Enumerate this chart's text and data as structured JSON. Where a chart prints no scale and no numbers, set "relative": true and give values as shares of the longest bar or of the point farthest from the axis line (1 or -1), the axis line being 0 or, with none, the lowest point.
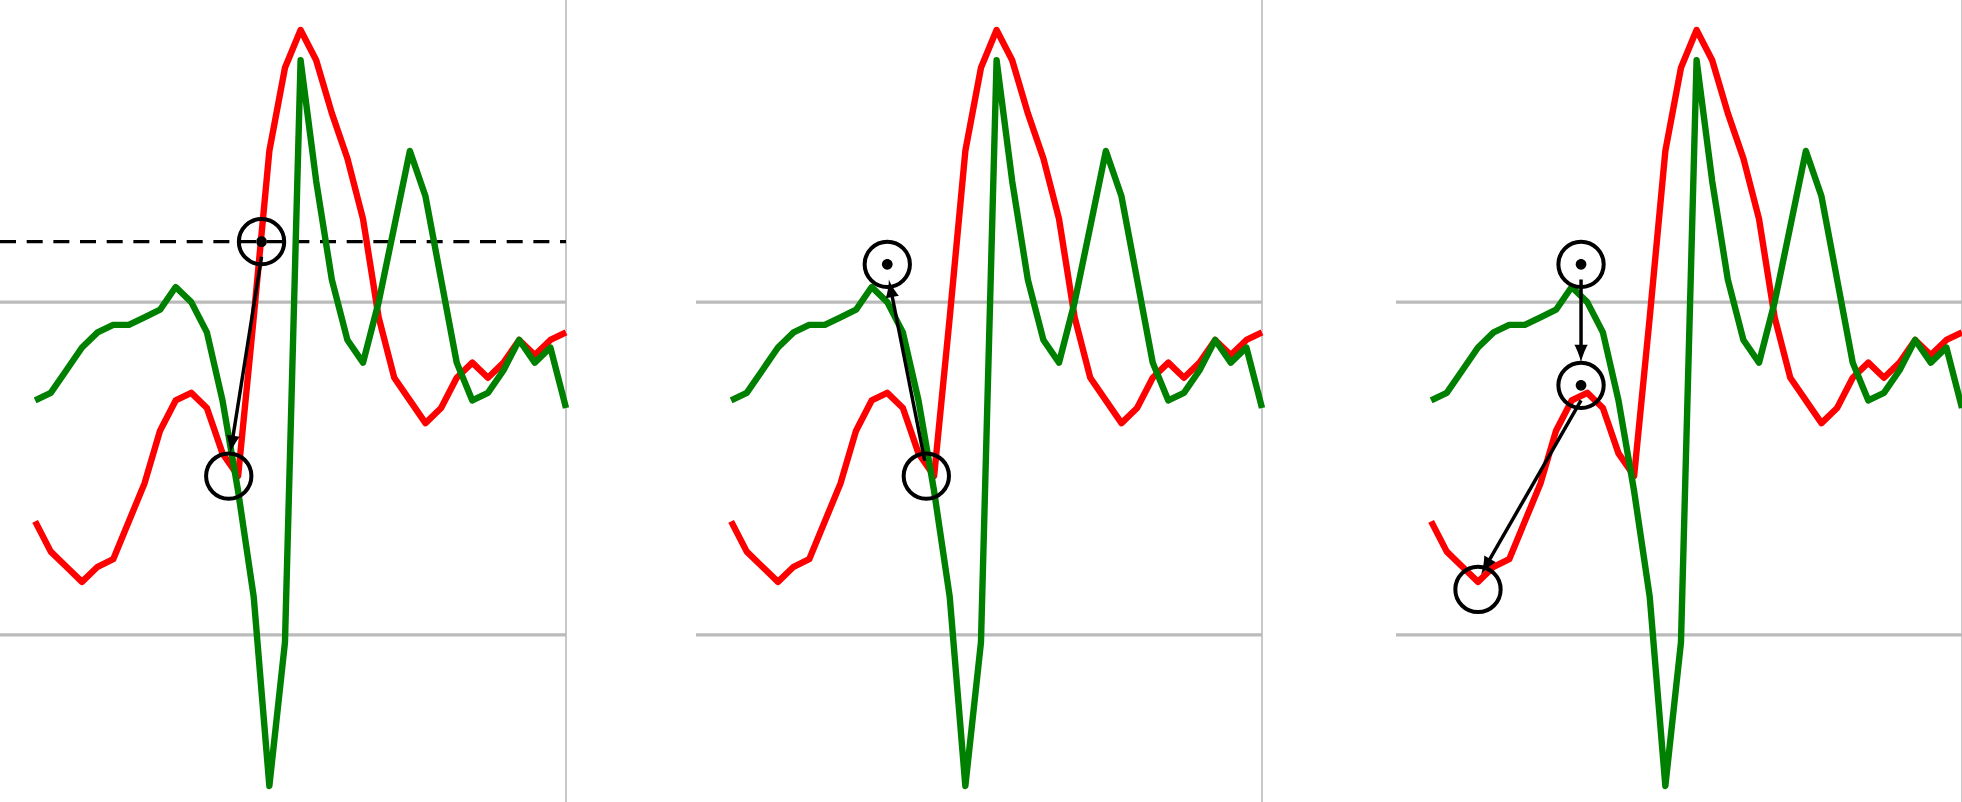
{
  "chart_data": [
    {
      "type": "line",
      "relative": true,
      "categories": [
        null,
        null,
        null,
        null,
        null,
        null,
        null,
        null,
        null,
        null,
        null,
        null,
        null,
        null,
        null,
        null,
        null,
        null,
        null,
        null,
        null,
        null,
        null,
        null,
        null,
        null,
        null,
        null,
        null,
        null,
        null,
        null,
        null,
        null,
        null
      ],
      "series": [
        {
          "color": "#ff0000",
          "values": [
            0.35,
            0.31,
            0.29,
            0.27,
            0.29,
            0.3,
            0.35,
            0.4,
            0.47,
            0.51,
            0.52,
            0.5,
            0.44,
            0.41,
            0.62,
            0.84,
            0.95,
            1,
            0.96,
            0.89,
            0.83,
            0.75,
            0.62,
            0.54,
            0.51,
            0.48,
            0.5,
            0.54,
            0.56,
            0.54,
            0.56,
            0.59,
            0.57,
            0.59,
            0.6
          ]
        },
        {
          "color": "#008000",
          "values": [
            0.51,
            0.52,
            0.55,
            0.58,
            0.6,
            0.61,
            0.61,
            0.62,
            0.63,
            0.66,
            0.64,
            0.6,
            0.51,
            0.39,
            0.25,
            0,
            0.19,
            0.96,
            0.8,
            0.67,
            0.59,
            0.56,
            0.64,
            0.74,
            0.84,
            0.78,
            0.67,
            0.56,
            0.51,
            0.52,
            0.55,
            0.59,
            0.56,
            0.58,
            0.5
          ]
        }
      ],
      "ref_lines": [
        {
          "axis": "y",
          "value": 0.64,
          "color": "#bbbbbb"
        },
        {
          "axis": "y",
          "value": 0.2,
          "color": "#bbbbbb"
        },
        {
          "axis": "y",
          "value": 0.72,
          "color": "#000000",
          "line_style": "dashed"
        }
      ]
    },
    {
      "type": "line",
      "relative": true,
      "categories": [
        null,
        null,
        null,
        null,
        null,
        null,
        null,
        null,
        null,
        null,
        null,
        null,
        null,
        null,
        null,
        null,
        null,
        null,
        null,
        null,
        null,
        null,
        null,
        null,
        null,
        null,
        null,
        null,
        null,
        null,
        null,
        null,
        null,
        null,
        null
      ],
      "series": [
        {
          "color": "#ff0000",
          "values": [
            0.35,
            0.31,
            0.29,
            0.27,
            0.29,
            0.3,
            0.35,
            0.4,
            0.47,
            0.51,
            0.52,
            0.5,
            0.44,
            0.41,
            0.62,
            0.84,
            0.95,
            1,
            0.96,
            0.89,
            0.83,
            0.75,
            0.62,
            0.54,
            0.51,
            0.48,
            0.5,
            0.54,
            0.56,
            0.54,
            0.56,
            0.59,
            0.57,
            0.59,
            0.6
          ]
        },
        {
          "color": "#008000",
          "values": [
            0.51,
            0.52,
            0.55,
            0.58,
            0.6,
            0.61,
            0.61,
            0.62,
            0.63,
            0.66,
            0.64,
            0.6,
            0.51,
            0.39,
            0.25,
            0,
            0.19,
            0.96,
            0.8,
            0.67,
            0.59,
            0.56,
            0.64,
            0.74,
            0.84,
            0.78,
            0.67,
            0.56,
            0.51,
            0.52,
            0.55,
            0.59,
            0.56,
            0.58,
            0.5
          ]
        }
      ],
      "ref_lines": [
        {
          "axis": "y",
          "value": 0.64,
          "color": "#bbbbbb"
        },
        {
          "axis": "y",
          "value": 0.2,
          "color": "#bbbbbb"
        }
      ]
    },
    {
      "type": "line",
      "relative": true,
      "categories": [
        null,
        null,
        null,
        null,
        null,
        null,
        null,
        null,
        null,
        null,
        null,
        null,
        null,
        null,
        null,
        null,
        null,
        null,
        null,
        null,
        null,
        null,
        null,
        null,
        null,
        null,
        null,
        null,
        null,
        null,
        null,
        null,
        null,
        null,
        null
      ],
      "series": [
        {
          "color": "#ff0000",
          "values": [
            0.35,
            0.31,
            0.29,
            0.27,
            0.29,
            0.3,
            0.35,
            0.4,
            0.47,
            0.51,
            0.52,
            0.5,
            0.44,
            0.41,
            0.62,
            0.84,
            0.95,
            1,
            0.96,
            0.89,
            0.83,
            0.75,
            0.62,
            0.54,
            0.51,
            0.48,
            0.5,
            0.54,
            0.56,
            0.54,
            0.56,
            0.59,
            0.57,
            0.59,
            0.6
          ]
        },
        {
          "color": "#008000",
          "values": [
            0.51,
            0.52,
            0.55,
            0.58,
            0.6,
            0.61,
            0.61,
            0.62,
            0.63,
            0.66,
            0.64,
            0.6,
            0.51,
            0.39,
            0.25,
            0,
            0.19,
            0.96,
            0.8,
            0.67,
            0.59,
            0.56,
            0.64,
            0.74,
            0.84,
            0.78,
            0.67,
            0.56,
            0.51,
            0.52,
            0.55,
            0.59,
            0.56,
            0.58,
            0.5
          ]
        }
      ],
      "ref_lines": [
        {
          "axis": "y",
          "value": 0.64,
          "color": "#bbbbbb"
        },
        {
          "axis": "y",
          "value": 0.2,
          "color": "#bbbbbb"
        }
      ]
    }
  ]
}
